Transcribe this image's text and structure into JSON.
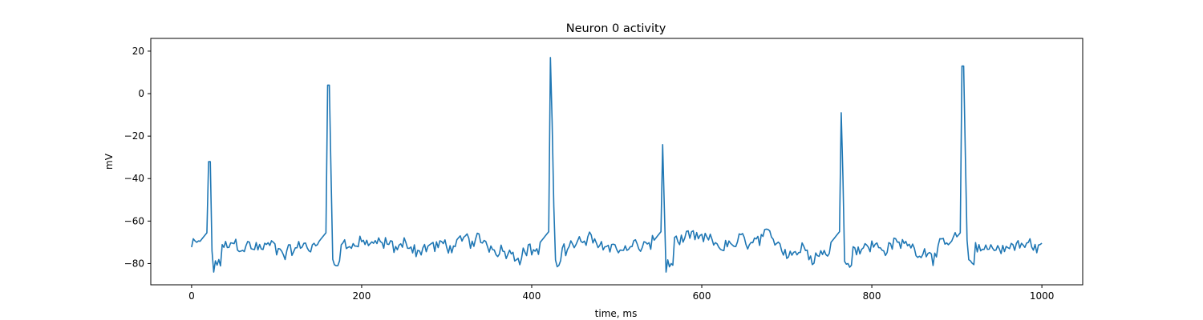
{
  "chart_data": {
    "type": "line",
    "title": "Neuron 0 activity",
    "xlabel": "time, ms",
    "ylabel": "mV",
    "xlim": [
      -48,
      1048
    ],
    "ylim": [
      -90,
      26
    ],
    "xticks": [
      0,
      200,
      400,
      600,
      800,
      1000
    ],
    "yticks": [
      -80,
      -60,
      -40,
      -20,
      0,
      20
    ],
    "xtick_labels": [
      "0",
      "200",
      "400",
      "600",
      "800",
      "1000"
    ],
    "ytick_labels": [
      "−80",
      "−60",
      "−40",
      "−20",
      "0",
      "20"
    ],
    "grid": false,
    "color": "#1f77b4",
    "series": [
      {
        "baseline": -72,
        "noise": 5,
        "spikes": [
          {
            "t": 21,
            "peak": -24
          },
          {
            "t": 161,
            "peak": 12
          },
          {
            "t": 422,
            "peak": 17
          },
          {
            "t": 554,
            "peak": -24
          },
          {
            "t": 764,
            "peak": -9
          },
          {
            "t": 907,
            "peak": 21
          }
        ],
        "x_range": [
          0,
          1000
        ],
        "points": [
          [
            0,
            -65
          ],
          [
            20,
            -70
          ],
          [
            21,
            -24
          ],
          [
            23,
            -65
          ],
          [
            40,
            -62
          ],
          [
            60,
            -73
          ],
          [
            80,
            -78
          ],
          [
            100,
            -70
          ],
          [
            120,
            -72
          ],
          [
            140,
            -74
          ],
          [
            158,
            -60
          ],
          [
            161,
            12
          ],
          [
            163,
            -70
          ],
          [
            170,
            -82
          ],
          [
            200,
            -75
          ],
          [
            220,
            -80
          ],
          [
            250,
            -68
          ],
          [
            270,
            -66
          ],
          [
            300,
            -72
          ],
          [
            320,
            -65
          ],
          [
            350,
            -70
          ],
          [
            380,
            -70
          ],
          [
            410,
            -66
          ],
          [
            420,
            -64
          ],
          [
            422,
            17
          ],
          [
            425,
            -80
          ],
          [
            450,
            -74
          ],
          [
            500,
            -74
          ],
          [
            540,
            -70
          ],
          [
            552,
            -60
          ],
          [
            554,
            -24
          ],
          [
            557,
            -78
          ],
          [
            580,
            -74
          ],
          [
            620,
            -72
          ],
          [
            650,
            -70
          ],
          [
            700,
            -72
          ],
          [
            740,
            -68
          ],
          [
            762,
            -62
          ],
          [
            764,
            -9
          ],
          [
            767,
            -76
          ],
          [
            800,
            -74
          ],
          [
            850,
            -72
          ],
          [
            880,
            -66
          ],
          [
            905,
            -62
          ],
          [
            907,
            21
          ],
          [
            910,
            -80
          ],
          [
            950,
            -76
          ],
          [
            980,
            -72
          ],
          [
            1000,
            -66
          ]
        ]
      }
    ]
  }
}
